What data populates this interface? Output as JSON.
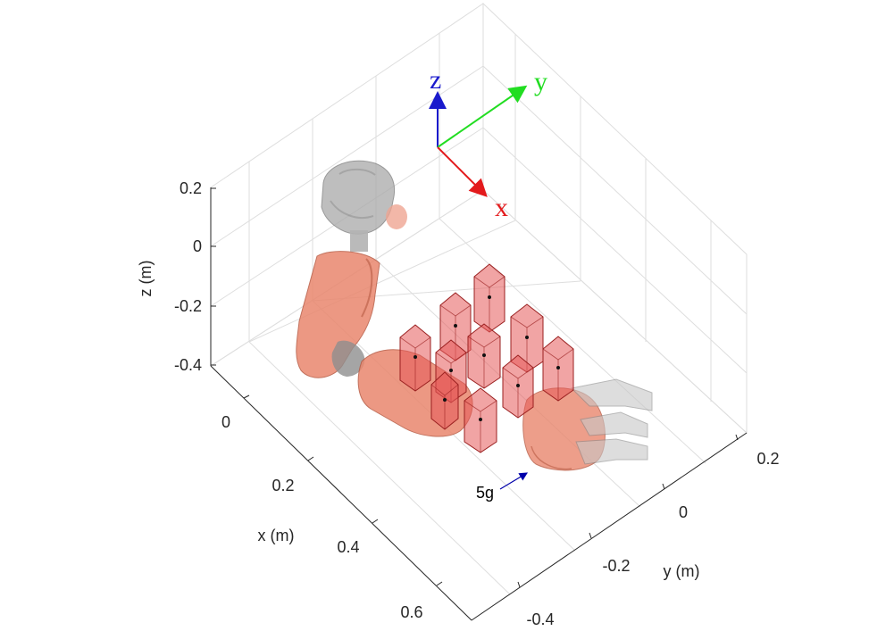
{
  "axes": {
    "x": {
      "label": "x (m)",
      "ticks": [
        "0",
        "0.2",
        "0.4",
        "0.6"
      ]
    },
    "y": {
      "label": "y (m)",
      "ticks": [
        "-0.4",
        "-0.2",
        "0",
        "0.2"
      ]
    },
    "z": {
      "label": "z (m)",
      "ticks": [
        "0.2",
        "0",
        "-0.2",
        "-0.4"
      ]
    }
  },
  "frame": {
    "x_label": "x",
    "y_label": "y",
    "z_label": "z",
    "x_color": "#e31a1c",
    "y_color": "#22dd22",
    "z_color": "#1a1acc"
  },
  "annotation": {
    "label": "5g",
    "color": "#0000aa"
  },
  "colors": {
    "arm_links": "#e9876e",
    "hand_gray": "#b9b9b9",
    "cell_fill": "#e65a5a",
    "cell_edge": "#9a2020"
  }
}
